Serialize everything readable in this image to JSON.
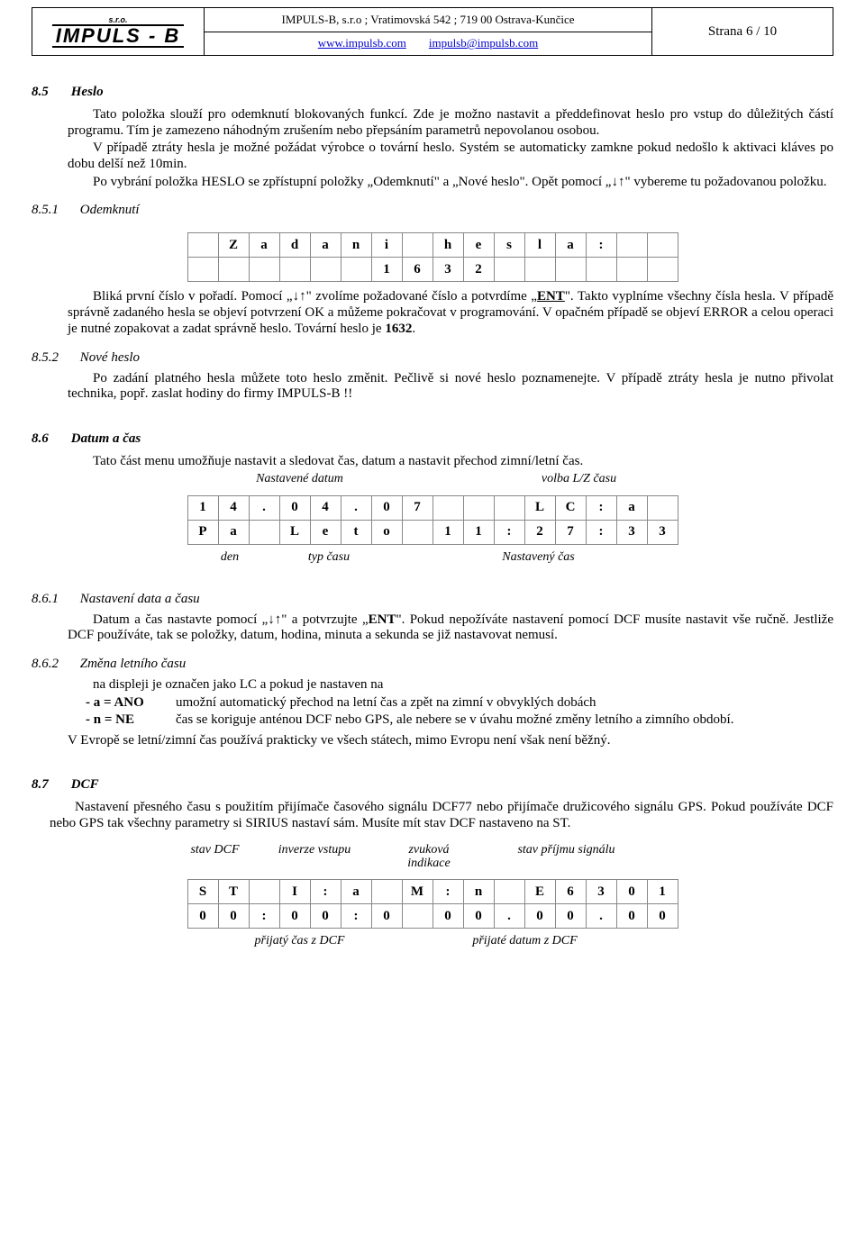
{
  "header": {
    "company_sro": "s.r.o.",
    "brand": "IMPULS - B",
    "addr": "IMPULS-B, s.r.o ; Vratimovská 542 ; 719 00 Ostrava-Kunčice",
    "url": "www.impulsb.com",
    "email": "impulsb@impulsb.com",
    "page": "Strana 6 / 10"
  },
  "s85": {
    "num": "8.5",
    "title": "Heslo",
    "p1a": "Tato položka slouží pro odemknutí blokovaných funkcí. Zde je možno nastavit a předdefinovat heslo pro vstup do důležitých částí programu. Tím je zamezeno náhodným zrušením nebo přepsáním parametrů nepovolanou osobou.",
    "p1b": "V případě ztráty hesla je možné požádat výrobce o tovární heslo. Systém se automaticky zamkne pokud nedošlo k aktivaci kláves po dobu delší než 10min.",
    "p1c_a": "Po vybrání položka HESLO se zpřístupní položky „Odemknutí\" a „Nové heslo\". Opět pomocí „",
    "arrows": "↓↑",
    "p1c_b": "\" vybereme tu požadovanou položku."
  },
  "s851": {
    "num": "8.5.1",
    "title": "Odemknutí",
    "grid": {
      "r1": [
        "",
        "Z",
        "a",
        "d",
        "a",
        "n",
        "i",
        "",
        "h",
        "e",
        "s",
        "l",
        "a",
        ":",
        "",
        ""
      ],
      "r2": [
        "",
        "",
        "",
        "",
        "",
        "",
        "1",
        "6",
        "3",
        "2",
        "",
        "",
        "",
        "",
        "",
        ""
      ]
    },
    "p_a": "Bliká první číslo v pořadí. Pomocí „",
    "p_b": "\" zvolíme požadované číslo a potvrdíme „",
    "ent": "ENT",
    "p_c": "\". Takto vyplníme všechny čísla hesla. V případě správně zadaného hesla se objeví potvrzení OK a můžeme pokračovat v programování. V opačném případě se objeví ERROR a celou operaci je nutné zopakovat a zadat správně heslo. Tovární heslo je ",
    "default_pw": "1632",
    "p_d": "."
  },
  "s852": {
    "num": "8.5.2",
    "title": "Nové heslo",
    "p": "Po zadání platného hesla můžete toto heslo změnit. Pečlivě si nové heslo poznamenejte. V případě ztráty hesla je nutno přivolat technika, popř. zaslat hodiny do firmy IMPULS-B !!"
  },
  "s86": {
    "num": "8.6",
    "title": "Datum a čas",
    "p": "Tato část menu umožňuje nastavit a sledovat čas, datum a nastavit přechod zimní/letní čas.",
    "lbl_nast_datum": "Nastavené datum",
    "lbl_volba": "volba L/Z času",
    "lbl_den": "den",
    "lbl_typ": "typ času",
    "lbl_nast_cas": "Nastavený čas",
    "grid": {
      "r1": [
        "1",
        "4",
        ".",
        "0",
        "4",
        ".",
        "0",
        "7",
        "",
        "",
        "",
        "L",
        "C",
        ":",
        "a",
        ""
      ],
      "r2": [
        "P",
        "a",
        "",
        "L",
        "e",
        "t",
        "o",
        "",
        "1",
        "1",
        ":",
        "2",
        "7",
        ":",
        "3",
        "3"
      ]
    }
  },
  "s861": {
    "num": "8.6.1",
    "title": "Nastavení data a času",
    "p_a": "Datum a čas nastavte pomocí „",
    "p_b": "\" a potvrzujte „",
    "p_c": "\". Pokud nepožíváte nastavení pomocí DCF musíte nastavit vše ručně. Jestliže DCF používáte, tak se položky, datum, hodina, minuta a sekunda se již nastavovat nemusí."
  },
  "s862": {
    "num": "8.6.2",
    "title": "Změna letního času",
    "p1": "na displeji je označen jako LC a pokud je nastaven na",
    "a_key": "- a = ANO",
    "a_val": "umožní automatický přechod na letní čas a zpět na zimní v obvyklých dobách",
    "n_key": "- n = NE",
    "n_val": "čas se koriguje anténou DCF nebo GPS, ale nebere se v úvahu možné změny letního a zimního období.",
    "p2": "V Evropě se letní/zimní čas používá prakticky ve všech státech, mimo Evropu není však není běžný."
  },
  "s87": {
    "num": "8.7",
    "title": "DCF",
    "p": "Nastavení přesného času s použitím přijímače časového signálu DCF77 nebo přijímače družicového signálu GPS. Pokud používáte DCF nebo GPS tak všechny parametry si SIRIUS nastaví sám. Musíte mít stav DCF nastaveno na ST.",
    "lbl_stav": "stav DCF",
    "lbl_inv": "inverze vstupu",
    "lbl_zvuk": "zvuková indikace",
    "lbl_signal": "stav příjmu signálu",
    "lbl_cas": "přijatý čas z DCF",
    "lbl_datum": "přijaté datum z DCF",
    "grid": {
      "r1": [
        "S",
        "T",
        "",
        "I",
        ":",
        "a",
        "",
        "M",
        ":",
        "n",
        "",
        "E",
        "6",
        "3",
        "0",
        "1"
      ],
      "r2": [
        "0",
        "0",
        ":",
        "0",
        "0",
        ":",
        "0",
        "",
        "0",
        "0",
        ".",
        "0",
        "0",
        ".",
        "0",
        "0"
      ]
    }
  }
}
